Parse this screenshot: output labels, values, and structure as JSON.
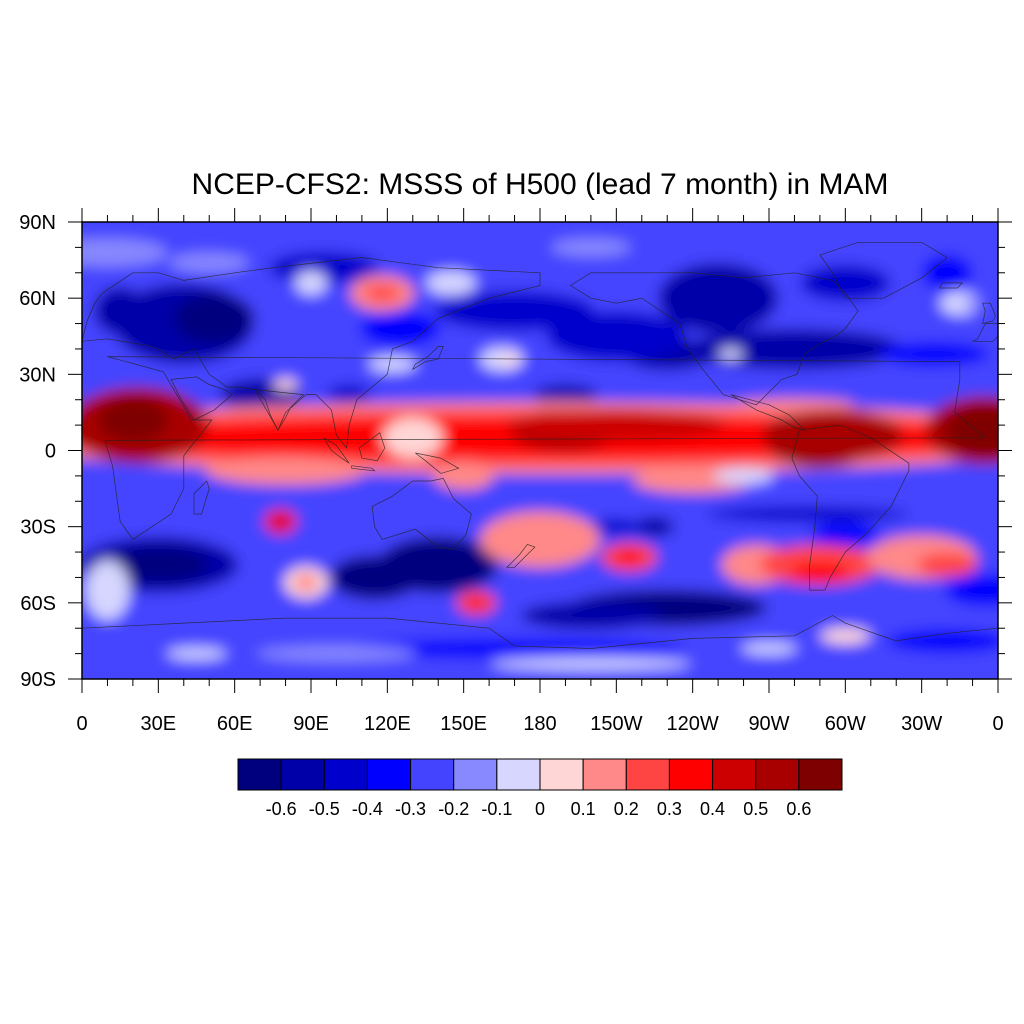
{
  "title": "NCEP-CFS2: MSSS of H500 (lead 7 month) in MAM",
  "map": {
    "projection": "cylindrical-equidistant",
    "lon_range": [
      0,
      360
    ],
    "lat_range": [
      -90,
      90
    ],
    "coastlines": true,
    "x_tick_labels": [
      "0",
      "30E",
      "60E",
      "90E",
      "120E",
      "150E",
      "180",
      "150W",
      "120W",
      "90W",
      "60W",
      "30W",
      "0"
    ],
    "y_tick_labels": [
      "90N",
      "60N",
      "30N",
      "0",
      "30S",
      "60S",
      "90S"
    ]
  },
  "colorbar": {
    "colors": [
      "#00007f",
      "#0000a8",
      "#0000cc",
      "#0000ff",
      "#4444ff",
      "#8888ff",
      "#d6d6ff",
      "#ffd6d6",
      "#ff8888",
      "#ff4444",
      "#ff0000",
      "#cc0000",
      "#a80000",
      "#7f0000"
    ],
    "labels": [
      "-0.6",
      "-0.5",
      "-0.4",
      "-0.3",
      "-0.2",
      "-0.1",
      "0",
      "0.1",
      "0.2",
      "0.3",
      "0.4",
      "0.5",
      "0.6"
    ]
  }
}
